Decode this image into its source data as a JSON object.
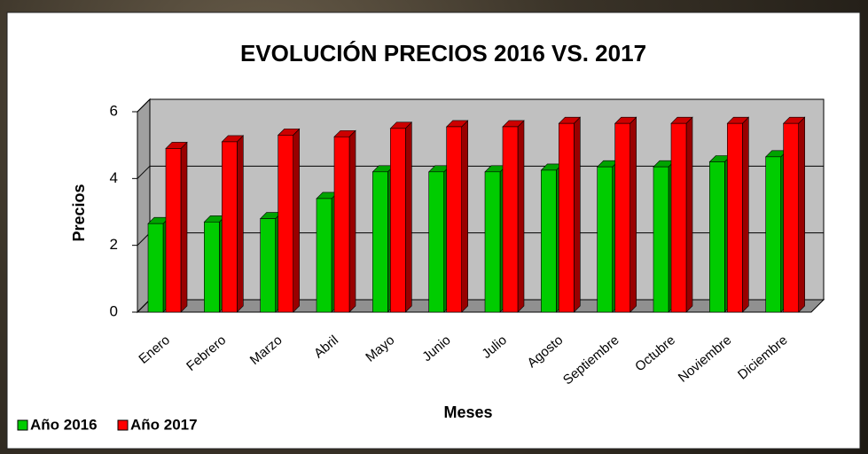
{
  "chart_data": {
    "type": "bar3d",
    "title": "EVOLUCIÓN PRECIOS 2016 VS. 2017",
    "x_label": "Meses",
    "y_label": "Precios",
    "categories": [
      "Enero",
      "Febrero",
      "Marzo",
      "Abril",
      "Mayo",
      "Junio",
      "Julio",
      "Agosto",
      "Septiembre",
      "Octubre",
      "Noviembre",
      "Diciembre"
    ],
    "series": [
      {
        "name": "Año 2016",
        "color": "#00cc00",
        "values": [
          2.65,
          2.7,
          2.8,
          3.4,
          4.2,
          4.2,
          4.2,
          4.25,
          4.35,
          4.35,
          4.5,
          4.65
        ]
      },
      {
        "name": "Año 2017",
        "color": "#ff0000",
        "values": [
          4.9,
          5.1,
          5.3,
          5.25,
          5.5,
          5.55,
          5.55,
          5.65,
          5.65,
          5.65,
          5.65,
          5.65
        ]
      }
    ],
    "ylim": [
      0,
      6
    ],
    "yticks": [
      0,
      2,
      4,
      6
    ],
    "grid": true,
    "legend": "bottom-left"
  }
}
